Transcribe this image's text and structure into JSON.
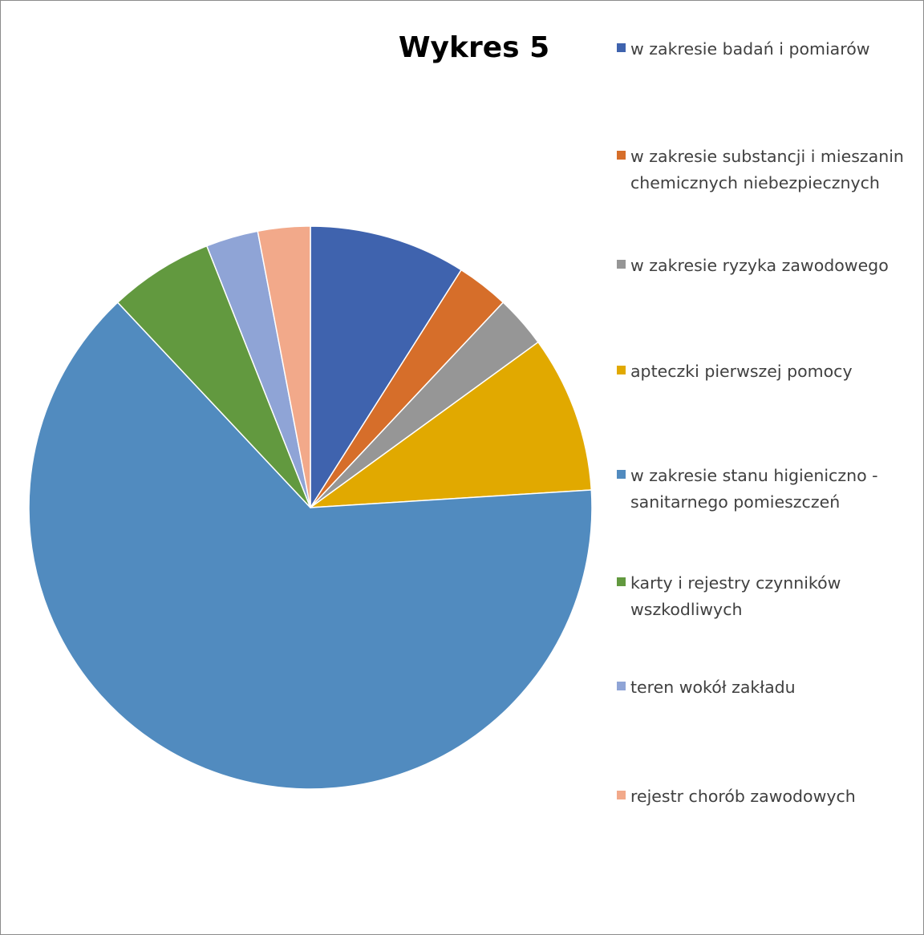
{
  "chart_data": {
    "type": "pie",
    "title": "Wykres 5",
    "start_angle_deg": 0,
    "direction": "clockwise",
    "legend_position": "right",
    "slices": [
      {
        "label": "w zakresie badań i pomiarów",
        "value": 9,
        "color": "#3F63AE"
      },
      {
        "label": "w zakresie substancji i mieszanin chemicznych niebezpiecznych",
        "value": 3,
        "color": "#D66E2A"
      },
      {
        "label": "w zakresie ryzyka zawodowego",
        "value": 3,
        "color": "#969696"
      },
      {
        "label": "apteczki pierwszej pomocy",
        "value": 9,
        "color": "#E1A900"
      },
      {
        "label": "w zakresie stanu higieniczno - sanitarnego pomieszczeń",
        "value": 64,
        "color": "#518BBF"
      },
      {
        "label": "karty i rejestry czynników wszkodliwych",
        "value": 6,
        "color": "#62993F"
      },
      {
        "label": "teren wokół zakładu",
        "value": 3,
        "color": "#8FA4D6"
      },
      {
        "label": "rejestr chorób zawodowych",
        "value": 3,
        "color": "#F2A98A"
      }
    ]
  }
}
